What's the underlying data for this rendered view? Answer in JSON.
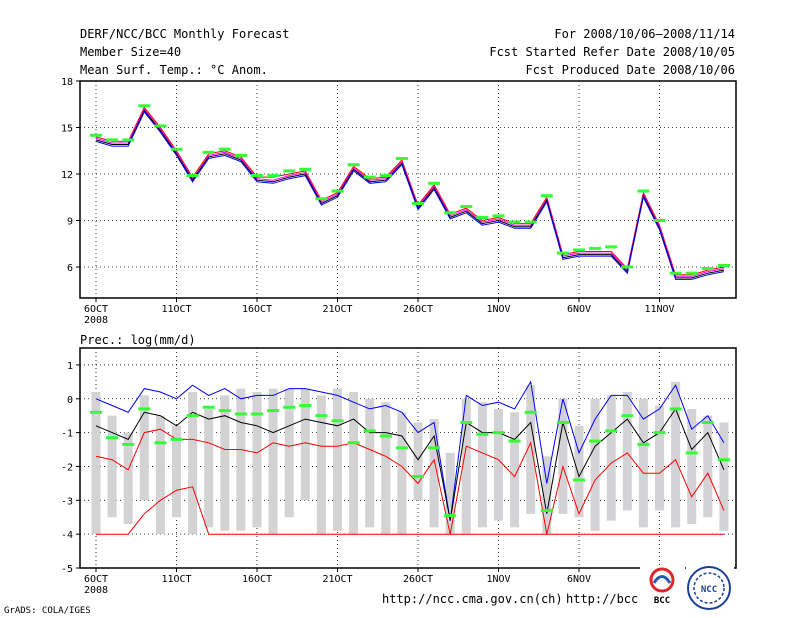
{
  "header": {
    "left": [
      "DERF/NCC/BCC Monthly Forecast",
      "Member Size=40",
      "Mean Surf. Temp.: °C Anom."
    ],
    "right": [
      "For 2008/10/06–2008/11/14",
      "Fcst Started Refer Date 2008/10/05",
      "Fcst Produced Date 2008/10/06"
    ]
  },
  "footer": {
    "credit": "GrADS: COLA/IGES",
    "url1": "http://ncc.cma.gov.cn(ch)",
    "url2": "http://bcc.",
    "logo1_text": "BCC",
    "logo2_text": "NCC"
  },
  "chart_data": [
    {
      "type": "line",
      "title": "Mean Surf. Temp.: °C Anom.",
      "x_tick_labels": [
        "6OCT",
        "11OCT",
        "16OCT",
        "21OCT",
        "26OCT",
        "1NOV",
        "6NOV",
        "11NOV"
      ],
      "x_tick_days": [
        1,
        6,
        11,
        16,
        21,
        26,
        31,
        36
      ],
      "x_sublabel": "2008",
      "ylim": [
        4,
        18
      ],
      "y_ticks": [
        6,
        9,
        12,
        15,
        18
      ],
      "grid": true,
      "green_marks": [
        14.5,
        14.2,
        14.2,
        16.4,
        15.1,
        13.6,
        11.9,
        13.4,
        13.6,
        13.2,
        11.9,
        11.9,
        12.2,
        12.3,
        10.4,
        10.9,
        12.6,
        11.8,
        11.9,
        13.0,
        10.1,
        11.4,
        9.5,
        9.9,
        9.2,
        9.3,
        8.9,
        8.9,
        10.6,
        6.9,
        7.1,
        7.2,
        7.3,
        6.0,
        10.9,
        9.0,
        5.6,
        5.6,
        5.9,
        6.1
      ],
      "series": [
        {
          "name": "upper",
          "color": "#ff0000",
          "values": [
            14.4,
            14.1,
            14.1,
            16.3,
            15.0,
            13.5,
            11.8,
            13.3,
            13.5,
            13.1,
            11.8,
            11.8,
            12.0,
            12.2,
            10.3,
            10.8,
            12.5,
            11.7,
            11.8,
            12.9,
            10.0,
            11.3,
            9.4,
            9.8,
            9.0,
            9.2,
            8.8,
            8.8,
            10.5,
            6.8,
            7.0,
            7.0,
            7.0,
            5.9,
            10.8,
            8.7,
            5.5,
            5.5,
            5.8,
            6.0
          ]
        },
        {
          "name": "mean_hi",
          "color": "#ff00ff",
          "values": [
            14.3,
            14.0,
            14.0,
            16.2,
            14.9,
            13.4,
            11.7,
            13.2,
            13.4,
            13.0,
            11.7,
            11.6,
            11.9,
            12.1,
            10.2,
            10.7,
            12.4,
            11.6,
            11.7,
            12.8,
            9.9,
            11.2,
            9.3,
            9.7,
            8.9,
            9.1,
            8.7,
            8.7,
            10.4,
            6.7,
            6.9,
            6.9,
            6.9,
            5.8,
            10.7,
            8.6,
            5.4,
            5.4,
            5.7,
            5.9
          ]
        },
        {
          "name": "mean",
          "color": "#000000",
          "values": [
            14.2,
            13.9,
            13.9,
            16.1,
            14.8,
            13.3,
            11.6,
            13.1,
            13.3,
            12.9,
            11.6,
            11.5,
            11.8,
            12.0,
            10.1,
            10.6,
            12.3,
            11.5,
            11.6,
            12.7,
            9.8,
            11.1,
            9.2,
            9.6,
            8.8,
            9.0,
            8.6,
            8.6,
            10.3,
            6.6,
            6.8,
            6.8,
            6.8,
            5.7,
            10.6,
            8.5,
            5.3,
            5.3,
            5.6,
            5.8
          ]
        },
        {
          "name": "lower",
          "color": "#0000ff",
          "values": [
            14.1,
            13.8,
            13.8,
            16.0,
            14.7,
            13.2,
            11.5,
            13.0,
            13.2,
            12.8,
            11.5,
            11.4,
            11.7,
            11.9,
            10.0,
            10.5,
            12.2,
            11.4,
            11.5,
            12.6,
            9.7,
            11.0,
            9.1,
            9.5,
            8.7,
            8.9,
            8.5,
            8.5,
            10.2,
            6.5,
            6.7,
            6.7,
            6.7,
            5.6,
            10.5,
            8.4,
            5.2,
            5.2,
            5.5,
            5.7
          ]
        }
      ]
    },
    {
      "type": "line",
      "title": "Prec.: log(mm/d)",
      "x_tick_labels": [
        "6OCT",
        "11OCT",
        "16OCT",
        "21OCT",
        "26OCT",
        "1NOV",
        "6NOV",
        "11NOV"
      ],
      "x_tick_days": [
        1,
        6,
        11,
        16,
        21,
        26,
        31,
        36
      ],
      "x_sublabel": "2008",
      "ylim": [
        -5,
        1.5
      ],
      "y_ticks": [
        -5,
        -4,
        -3,
        -2,
        -1,
        0,
        1
      ],
      "grid": true,
      "box_ranges": [
        [
          -4,
          0.2
        ],
        [
          -3.5,
          -0.5
        ],
        [
          -3.7,
          -1.0
        ],
        [
          -3.0,
          0.1
        ],
        [
          -4,
          -0.5
        ],
        [
          -3.5,
          -0.8
        ],
        [
          -4,
          0.2
        ],
        [
          -3.8,
          -0.3
        ],
        [
          -3.9,
          0.1
        ],
        [
          -3.9,
          0.3
        ],
        [
          -3.8,
          0.2
        ],
        [
          -4,
          0.3
        ],
        [
          -3.5,
          0.3
        ],
        [
          -3.0,
          0.3
        ],
        [
          -4,
          0.1
        ],
        [
          -3.9,
          0.3
        ],
        [
          -4,
          0.2
        ],
        [
          -3.8,
          0.0
        ],
        [
          -4,
          -0.1
        ],
        [
          -4,
          -0.4
        ],
        [
          -3.0,
          -0.7
        ],
        [
          -3.8,
          -0.6
        ],
        [
          -4,
          -1.6
        ],
        [
          -4,
          0.0
        ],
        [
          -3.8,
          -0.1
        ],
        [
          -3.6,
          -0.3
        ],
        [
          -3.8,
          -0.4
        ],
        [
          -3.4,
          0.4
        ],
        [
          -4,
          -1.7
        ],
        [
          -3.4,
          0.0
        ],
        [
          -3.5,
          -0.8
        ],
        [
          -3.9,
          0.0
        ],
        [
          -3.6,
          0.1
        ],
        [
          -3.3,
          0.2
        ],
        [
          -3.8,
          0.0
        ],
        [
          -3.3,
          -0.2
        ],
        [
          -3.8,
          0.5
        ],
        [
          -3.7,
          -0.3
        ],
        [
          -3.5,
          -0.5
        ],
        [
          -3.9,
          -0.7
        ]
      ],
      "green_marks": [
        -0.4,
        -1.15,
        -1.35,
        -0.3,
        -1.3,
        -1.2,
        -0.5,
        -0.25,
        -0.35,
        -0.45,
        -0.45,
        -0.35,
        -0.25,
        -0.2,
        -0.5,
        -0.65,
        -1.3,
        -0.95,
        -1.1,
        -1.45,
        -2.3,
        -1.45,
        -3.45,
        -0.7,
        -1.05,
        -1.0,
        -1.25,
        -0.4,
        -3.3,
        -0.7,
        -2.4,
        -1.25,
        -0.95,
        -0.5,
        -1.35,
        -1.0,
        -0.3,
        -1.6,
        -0.7,
        -1.8
      ],
      "series": [
        {
          "name": "upper",
          "color": "#0000ff",
          "values": [
            0.0,
            -0.2,
            -0.4,
            0.3,
            0.2,
            0.0,
            0.4,
            0.1,
            0.3,
            0.0,
            0.1,
            0.1,
            0.3,
            0.3,
            0.2,
            0.1,
            -0.1,
            -0.3,
            -0.2,
            -0.4,
            -1.0,
            -0.7,
            -3.6,
            0.1,
            -0.2,
            -0.1,
            -0.3,
            0.5,
            -2.5,
            0.0,
            -1.6,
            -0.6,
            0.1,
            0.1,
            -0.6,
            -0.3,
            0.4,
            -0.9,
            -0.5,
            -1.3
          ]
        },
        {
          "name": "mean",
          "color": "#000000",
          "values": [
            -0.8,
            -1.0,
            -1.2,
            -0.4,
            -0.5,
            -0.8,
            -0.4,
            -0.6,
            -0.5,
            -0.7,
            -0.8,
            -1.0,
            -0.8,
            -0.6,
            -0.7,
            -0.8,
            -0.6,
            -1.0,
            -1.0,
            -1.1,
            -1.8,
            -1.1,
            -3.6,
            -0.7,
            -1.0,
            -1.0,
            -1.2,
            -0.7,
            -3.4,
            -0.7,
            -2.3,
            -1.4,
            -1.0,
            -0.6,
            -1.3,
            -1.0,
            -0.3,
            -1.5,
            -1.0,
            -2.1
          ]
        },
        {
          "name": "lower",
          "color": "#ff0000",
          "values": [
            -1.7,
            -1.8,
            -2.1,
            -1.0,
            -0.9,
            -1.2,
            -1.2,
            -1.3,
            -1.5,
            -1.5,
            -1.6,
            -1.3,
            -1.4,
            -1.3,
            -1.4,
            -1.4,
            -1.3,
            -1.5,
            -1.7,
            -2.0,
            -2.5,
            -1.8,
            -4.0,
            -1.4,
            -1.6,
            -1.8,
            -2.3,
            -1.3,
            -4.0,
            -2.0,
            -3.4,
            -2.4,
            -1.9,
            -1.6,
            -2.2,
            -2.2,
            -1.8,
            -2.9,
            -2.2,
            -3.3
          ]
        },
        {
          "name": "min",
          "color": "#ff0000",
          "values": [
            -4.0,
            -4.0,
            -4.0,
            -3.4,
            -3.0,
            -2.7,
            -2.6,
            -4.0,
            -4.0,
            -4.0,
            -4.0,
            -4.0,
            -4.0,
            -4.0,
            -4.0,
            -4.0,
            -4.0,
            -4.0,
            -4.0,
            -4.0,
            -4.0,
            -4.0,
            -4.0,
            -4.0,
            -4.0,
            -4.0,
            -4.0,
            -4.0,
            -4.0,
            -4.0,
            -4.0,
            -4.0,
            -4.0,
            -4.0,
            -4.0,
            -4.0,
            -4.0,
            -4.0,
            -4.0,
            -4.0
          ]
        }
      ]
    }
  ],
  "colors": {
    "box": "#d3d3d6",
    "green": "#33ff33",
    "grid": "#000000"
  }
}
